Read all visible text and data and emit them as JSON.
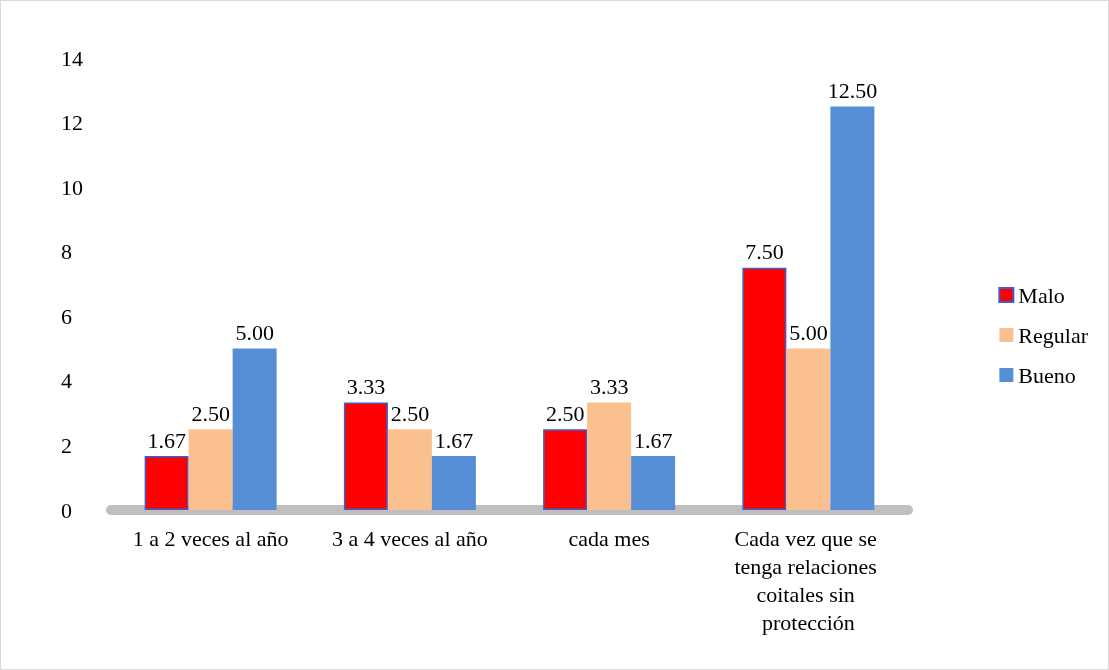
{
  "chart_data": {
    "type": "bar",
    "categories": [
      "1 a 2 veces al año",
      "3 a 4 veces al año",
      "cada mes",
      "Cada vez que se tenga relaciones coitales sin protección"
    ],
    "series": [
      {
        "name": "Malo",
        "color": "#ff0000",
        "values": [
          1.67,
          3.33,
          2.5,
          7.5
        ],
        "value_labels": [
          "1.67",
          "3.33",
          "2.50",
          "7.50"
        ]
      },
      {
        "name": "Regular",
        "color": "#fac090",
        "values": [
          2.5,
          2.5,
          3.33,
          5
        ],
        "value_labels": [
          "2.50",
          "2.50",
          "3.33",
          "5.00"
        ]
      },
      {
        "name": "Bueno",
        "color": "#558ed5",
        "values": [
          5,
          1.67,
          1.67,
          12.5
        ],
        "value_labels": [
          "5.00",
          "1.67",
          "1.67",
          "12.50"
        ]
      }
    ],
    "ylim": [
      0,
      14
    ],
    "yticks": [
      0,
      2,
      4,
      6,
      8,
      10,
      12,
      14
    ],
    "legend": "right"
  }
}
